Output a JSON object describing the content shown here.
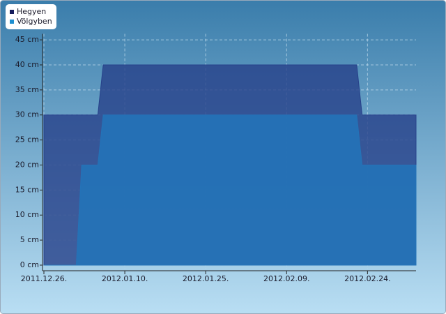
{
  "chart_data": {
    "type": "area",
    "x": [
      "2011.12.26.",
      "2012.01.01.",
      "2012.01.02.",
      "2012.01.05.",
      "2012.01.06.",
      "2012.02.22.",
      "2012.02.23.",
      "2012.03.04."
    ],
    "series": [
      {
        "name": "Hegyen",
        "color": "#27418a",
        "values": [
          30,
          30,
          30,
          30,
          40,
          40,
          30,
          30
        ]
      },
      {
        "name": "Völgyben",
        "color": "#2473b8",
        "values": [
          0,
          0,
          20,
          20,
          30,
          30,
          20,
          20
        ]
      }
    ],
    "xlim": [
      "2011.12.26.",
      "2012.03.04."
    ],
    "xticks": [
      "2011.12.26.",
      "2012.01.10.",
      "2012.01.25.",
      "2012.02.09.",
      "2012.02.24."
    ],
    "ylim": [
      -0.7,
      46.2
    ],
    "yticks": [
      {
        "value": 0,
        "label": "0 cm"
      },
      {
        "value": 5,
        "label": "5 cm"
      },
      {
        "value": 10,
        "label": "10 cm"
      },
      {
        "value": 15,
        "label": "15 cm"
      },
      {
        "value": 20,
        "label": "20 cm"
      },
      {
        "value": 25,
        "label": "25 cm"
      },
      {
        "value": 30,
        "label": "30 cm"
      },
      {
        "value": 35,
        "label": "35 cm"
      },
      {
        "value": 40,
        "label": "40 cm"
      },
      {
        "value": 45,
        "label": "45 cm"
      }
    ],
    "grid": true,
    "legend": "top-left"
  }
}
